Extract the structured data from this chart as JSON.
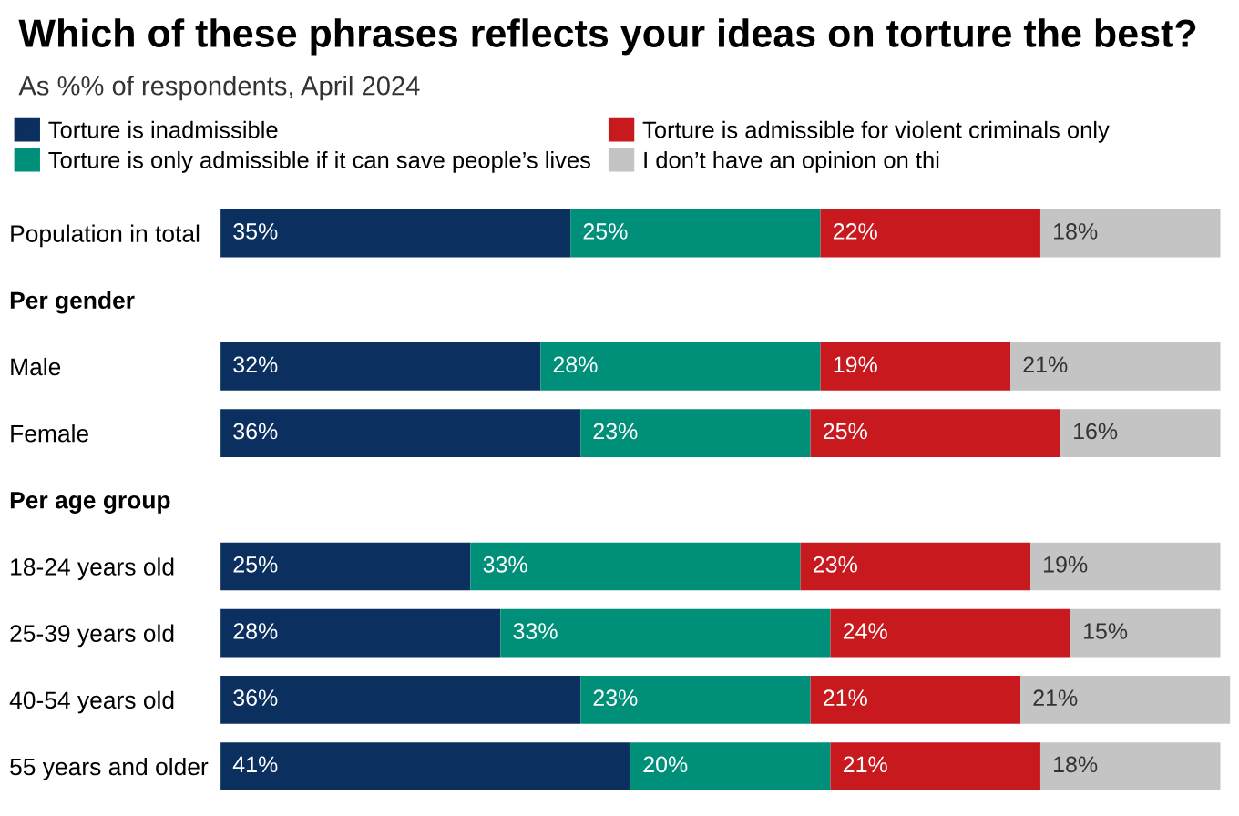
{
  "chart_data": {
    "type": "bar",
    "orientation": "horizontal",
    "stacked": true,
    "title": "Which of these phrases reflects your ideas on torture the best?",
    "subtitle": "As %% of respondents, April 2024",
    "categories": [
      "Population in total",
      "Per gender",
      "Male",
      "Female",
      "Per age group",
      "18-24 years old",
      "25-39 years old",
      "40-54 years old",
      "55 years and older"
    ],
    "series": [
      {
        "name": "Torture is inadmissible",
        "color": "#0b2f5e",
        "values": [
          35,
          null,
          32,
          36,
          null,
          25,
          28,
          36,
          41
        ],
        "value_labels": [
          "35%",
          null,
          "32%",
          "36%",
          null,
          "25%",
          "28%",
          "36%",
          "41%"
        ]
      },
      {
        "name": "Torture is only admissible if it can save people’s lives",
        "color": "#00907a",
        "values": [
          25,
          null,
          28,
          23,
          null,
          33,
          33,
          23,
          20
        ],
        "value_labels": [
          "25%",
          null,
          "28%",
          "23%",
          null,
          "33%",
          "33%",
          "23%",
          "20%"
        ]
      },
      {
        "name": "Torture is admissible for violent criminals only",
        "color": "#c8191e",
        "values": [
          22,
          null,
          19,
          25,
          null,
          23,
          24,
          21,
          21
        ],
        "value_labels": [
          "22%",
          null,
          "19%",
          "25%",
          null,
          "23%",
          "24%",
          "21%",
          "21%"
        ]
      },
      {
        "name": "I don’t have an opinion on thi",
        "color": "#c4c4c4",
        "values": [
          18,
          null,
          21,
          16,
          null,
          19,
          15,
          21,
          18
        ],
        "value_labels": [
          "18%",
          null,
          "21%",
          "16%",
          null,
          "19%",
          "15%",
          "21%",
          "18%"
        ]
      }
    ],
    "xlim": [
      0,
      101
    ],
    "tick_labels": "y",
    "legend": "top",
    "grid": false
  }
}
